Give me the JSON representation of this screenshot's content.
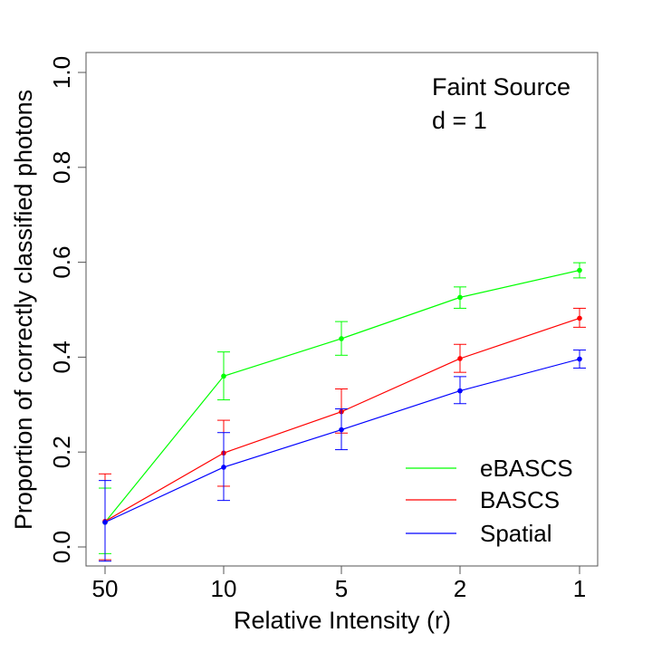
{
  "chart_data": {
    "type": "line",
    "title": "",
    "xlabel": "Relative Intensity (r)",
    "ylabel": "Proportion of correctly classified photons",
    "categories": [
      "50",
      "10",
      "5",
      "2",
      "1"
    ],
    "ylim": [
      0,
      1
    ],
    "yticks": [
      "0.0",
      "0.2",
      "0.4",
      "0.6",
      "0.8",
      "1.0"
    ],
    "ytick_values": [
      0.0,
      0.2,
      0.4,
      0.6,
      0.8,
      1.0
    ],
    "grid": false,
    "legend_position": "bottom-right",
    "annotations": [
      "Faint Source",
      "d = 1"
    ],
    "series": [
      {
        "name": "eBASCS",
        "color": "#00ff00",
        "values": [
          0.052,
          0.36,
          0.439,
          0.526,
          0.583
        ],
        "lower": [
          -0.014,
          0.31,
          0.404,
          0.503,
          0.567
        ],
        "upper": [
          0.124,
          0.411,
          0.475,
          0.548,
          0.599
        ]
      },
      {
        "name": "BASCS",
        "color": "#ff0000",
        "values": [
          0.054,
          0.198,
          0.285,
          0.397,
          0.482
        ],
        "lower": [
          -0.027,
          0.128,
          0.24,
          0.368,
          0.463
        ],
        "upper": [
          0.154,
          0.267,
          0.333,
          0.427,
          0.503
        ]
      },
      {
        "name": "Spatial",
        "color": "#0000ff",
        "values": [
          0.052,
          0.168,
          0.247,
          0.329,
          0.396
        ],
        "lower": [
          -0.03,
          0.098,
          0.205,
          0.302,
          0.377
        ],
        "upper": [
          0.14,
          0.241,
          0.291,
          0.359,
          0.415
        ]
      }
    ]
  }
}
